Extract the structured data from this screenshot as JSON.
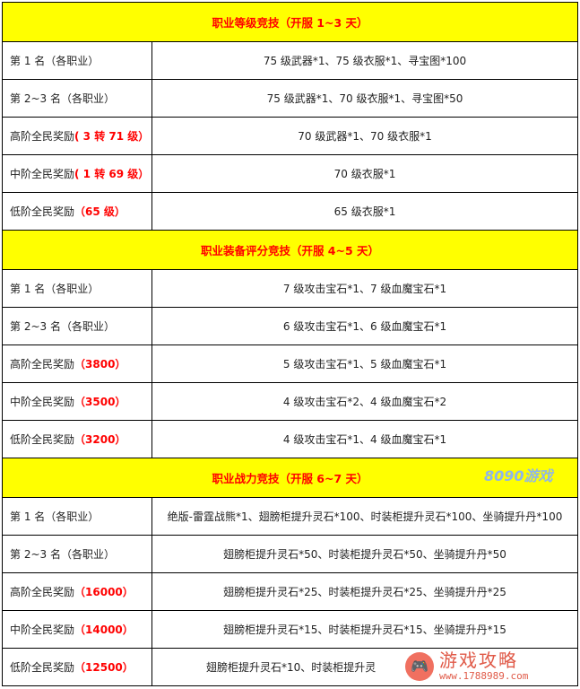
{
  "sections": [
    {
      "title": "职业等级竞技（开服 1~3 天）",
      "rows": [
        {
          "label": "第 1 名（各职业）",
          "highlight": "",
          "reward": "75 级武器*1、75 级衣服*1、寻宝图*100"
        },
        {
          "label": "第 2~3 名（各职业）",
          "highlight": "",
          "reward": "75 级武器*1、70 级衣服*1、寻宝图*50"
        },
        {
          "label": "高阶全民奖励",
          "highlight": "( 3 转 71 级）",
          "reward": "70 级武器*1、70 级衣服*1"
        },
        {
          "label": "中阶全民奖励",
          "highlight": "( 1 转 69 级）",
          "reward": "70 级衣服*1"
        },
        {
          "label": "低阶全民奖励",
          "highlight": "（65 级）",
          "reward": "65 级衣服*1"
        }
      ]
    },
    {
      "title": "职业装备评分竞技（开服 4~5 天）",
      "rows": [
        {
          "label": "第 1 名（各职业）",
          "highlight": "",
          "reward": "7 级攻击宝石*1、7 级血魔宝石*1"
        },
        {
          "label": "第 2~3 名（各职业）",
          "highlight": "",
          "reward": "6 级攻击宝石*1、6 级血魔宝石*1"
        },
        {
          "label": "高阶全民奖励",
          "highlight": "（3800）",
          "reward": "5 级攻击宝石*1、5 级血魔宝石*1"
        },
        {
          "label": "中阶全民奖励",
          "highlight": "（3500）",
          "reward": "4 级攻击宝石*2、4 级血魔宝石*2"
        },
        {
          "label": "低阶全民奖励",
          "highlight": "（3200）",
          "reward": "4 级攻击宝石*1、4 级血魔宝石*1"
        }
      ]
    },
    {
      "title": "职业战力竞技（开服 6~7 天）",
      "rows": [
        {
          "label": "第 1 名（各职业）",
          "highlight": "",
          "reward": "绝版-雷霆战熊*1、翅膀柜提升灵石*100、时装柜提升灵石*100、坐骑提升丹*100"
        },
        {
          "label": "第 2~3 名（各职业）",
          "highlight": "",
          "reward": "翅膀柜提升灵石*50、时装柜提升灵石*50、坐骑提升丹*50"
        },
        {
          "label": "高阶全民奖励",
          "highlight": "（16000）",
          "reward": "翅膀柜提升灵石*25、时装柜提升灵石*25、坐骑提升丹*25"
        },
        {
          "label": "中阶全民奖励",
          "highlight": "（14000）",
          "reward": "翅膀柜提升灵石*15、时装柜提升灵石*15、坐骑提升丹*15"
        },
        {
          "label": "低阶全民奖励",
          "highlight": "（12500）",
          "reward": "翅膀柜提升灵石*10、时装柜提升灵"
        }
      ]
    }
  ],
  "watermark": {
    "logo_text": "8090游戏",
    "title": "游戏攻略",
    "url": "www.1788989.com"
  },
  "colors": {
    "header_bg": "#ffff00",
    "highlight": "#ff0000"
  }
}
